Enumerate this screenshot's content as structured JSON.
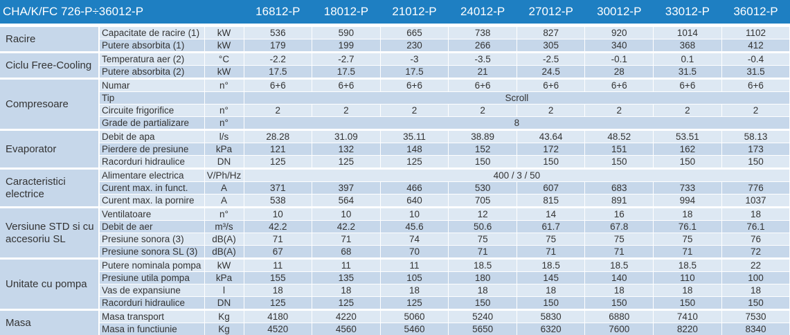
{
  "header": {
    "title": "CHA/K/FC 726-P÷36012-P",
    "models": [
      "16812-P",
      "18012-P",
      "21012-P",
      "24012-P",
      "27012-P",
      "30012-P",
      "33012-P",
      "36012-P"
    ]
  },
  "groups": [
    {
      "name": "Racire",
      "rows": [
        {
          "param": "Capacitate de racire (1)",
          "unit": "kW",
          "values": [
            "536",
            "590",
            "665",
            "738",
            "827",
            "920",
            "1014",
            "1102"
          ]
        },
        {
          "param": "Putere absorbita (1)",
          "unit": "kW",
          "values": [
            "179",
            "199",
            "230",
            "266",
            "305",
            "340",
            "368",
            "412"
          ]
        }
      ]
    },
    {
      "name": "Ciclu Free-Cooling",
      "rows": [
        {
          "param": "Temperatura aer (2)",
          "unit": "°C",
          "values": [
            "-2.2",
            "-2.7",
            "-3",
            "-3.5",
            "-2.5",
            "-0.1",
            "0.1",
            "-0.4"
          ]
        },
        {
          "param": "Putere absorbita (2)",
          "unit": "kW",
          "values": [
            "17.5",
            "17.5",
            "17.5",
            "21",
            "24.5",
            "28",
            "31.5",
            "31.5"
          ]
        }
      ]
    },
    {
      "name": "Compresoare",
      "rows": [
        {
          "param": "Numar",
          "unit": "n°",
          "values": [
            "6+6",
            "6+6",
            "6+6",
            "6+6",
            "6+6",
            "6+6",
            "6+6",
            "6+6"
          ]
        },
        {
          "param": "Tip",
          "unit": "",
          "span": "Scroll"
        },
        {
          "param": "Circuite frigorifice",
          "unit": "n°",
          "values": [
            "2",
            "2",
            "2",
            "2",
            "2",
            "2",
            "2",
            "2"
          ]
        },
        {
          "param": "Grade de partializare",
          "unit": "n°",
          "span": "8"
        }
      ]
    },
    {
      "name": "Evaporator",
      "rows": [
        {
          "param": "Debit de apa",
          "unit": "l/s",
          "values": [
            "28.28",
            "31.09",
            "35.11",
            "38.89",
            "43.64",
            "48.52",
            "53.51",
            "58.13"
          ]
        },
        {
          "param": "Pierdere de presiune",
          "unit": "kPa",
          "values": [
            "121",
            "132",
            "148",
            "152",
            "172",
            "151",
            "162",
            "173"
          ]
        },
        {
          "param": "Racorduri hidraulice",
          "unit": "DN",
          "values": [
            "125",
            "125",
            "125",
            "150",
            "150",
            "150",
            "150",
            "150"
          ]
        }
      ]
    },
    {
      "name": "Caracteristici electrice",
      "rows": [
        {
          "param": "Alimentare electrica",
          "unit": "V/Ph/Hz",
          "span": "400 / 3 / 50"
        },
        {
          "param": "Curent max. in funct.",
          "unit": "A",
          "values": [
            "371",
            "397",
            "466",
            "530",
            "607",
            "683",
            "733",
            "776"
          ]
        },
        {
          "param": "Curent max. la pornire",
          "unit": "A",
          "values": [
            "538",
            "564",
            "640",
            "705",
            "815",
            "891",
            "994",
            "1037"
          ]
        }
      ]
    },
    {
      "name": "Versiune STD si cu accesoriu SL",
      "rows": [
        {
          "param": "Ventilatoare",
          "unit": "n°",
          "values": [
            "10",
            "10",
            "10",
            "12",
            "14",
            "16",
            "18",
            "18"
          ]
        },
        {
          "param": "Debit de aer",
          "unit": "m³/s",
          "values": [
            "42.2",
            "42.2",
            "45.6",
            "50.6",
            "61.7",
            "67.8",
            "76.1",
            "76.1"
          ]
        },
        {
          "param": "Presiune sonora (3)",
          "unit": "dB(A)",
          "values": [
            "71",
            "71",
            "74",
            "75",
            "75",
            "75",
            "75",
            "76"
          ]
        },
        {
          "param": "Presiune sonora SL (3)",
          "unit": "dB(A)",
          "values": [
            "67",
            "68",
            "70",
            "71",
            "71",
            "71",
            "71",
            "72"
          ]
        }
      ]
    },
    {
      "name": "Unitate cu pompa",
      "rows": [
        {
          "param": "Putere nominala pompa",
          "unit": "kW",
          "values": [
            "11",
            "11",
            "11",
            "18.5",
            "18.5",
            "18.5",
            "18.5",
            "22"
          ]
        },
        {
          "param": "Presiune utila pompa",
          "unit": "kPa",
          "values": [
            "155",
            "135",
            "105",
            "180",
            "145",
            "140",
            "110",
            "100"
          ]
        },
        {
          "param": "Vas de expansiune",
          "unit": "l",
          "values": [
            "18",
            "18",
            "18",
            "18",
            "18",
            "18",
            "18",
            "18"
          ]
        },
        {
          "param": "Racorduri hidraulice",
          "unit": "DN",
          "values": [
            "125",
            "125",
            "125",
            "150",
            "150",
            "150",
            "150",
            "150"
          ]
        }
      ]
    },
    {
      "name": "Masa",
      "rows": [
        {
          "param": "Masa transport",
          "unit": "Kg",
          "values": [
            "4180",
            "4220",
            "5060",
            "5240",
            "5830",
            "6880",
            "7410",
            "7530"
          ]
        },
        {
          "param": "Masa in functiunie",
          "unit": "Kg",
          "values": [
            "4520",
            "4560",
            "5460",
            "5650",
            "6320",
            "7600",
            "8220",
            "8340"
          ]
        }
      ]
    }
  ]
}
